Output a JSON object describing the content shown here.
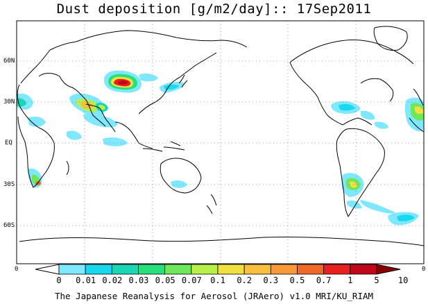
{
  "title": "Dust deposition [g/m2/day]:: 17Sep2011",
  "units": "g/m2/day",
  "date": "17Sep2011",
  "lat_labels": [
    "60N",
    "30N",
    "EQ",
    "30S",
    "60S"
  ],
  "lat_values": [
    60,
    30,
    0,
    -30,
    -60
  ],
  "edge_labels": {
    "left": "0",
    "right": "0"
  },
  "colorbar": {
    "ticks": [
      "0",
      "0.01",
      "0.02",
      "0.03",
      "0.05",
      "0.07",
      "0.1",
      "0.2",
      "0.3",
      "0.5",
      "0.7",
      "1",
      "5",
      "10"
    ],
    "colors": [
      "#ffffff",
      "#7fe8ff",
      "#18d8f0",
      "#1ad6b4",
      "#27e07c",
      "#6ee85a",
      "#b8f04a",
      "#f0e040",
      "#f8c040",
      "#f89838",
      "#f06828",
      "#e82020",
      "#c00818",
      "#8a0000"
    ]
  },
  "credit": "The Japanese Reanalysis for Aerosol (JRAero) v1.0 MRI/KU_RIAM"
}
